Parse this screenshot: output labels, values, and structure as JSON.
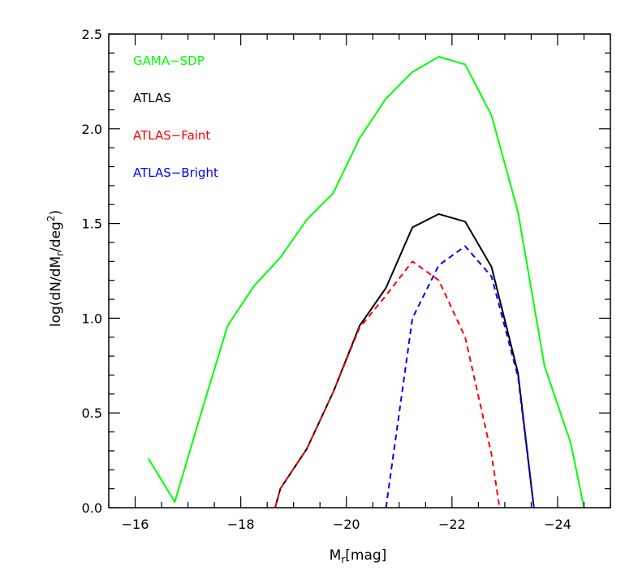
{
  "chart_data": {
    "type": "line",
    "title": "",
    "xlabel": {
      "main": "M",
      "sub": "r",
      "rest": "[mag]"
    },
    "ylabel": {
      "a": "log(dN/dM",
      "sub": "r",
      "b": "/deg",
      "sup": "2",
      "c": ")"
    },
    "xlim": [
      -15.5,
      -25
    ],
    "ylim": [
      0,
      2.5
    ],
    "xticks": [
      -16,
      -18,
      -20,
      -22,
      -24
    ],
    "xtick_labels": [
      "−16",
      "−18",
      "−20",
      "−22",
      "−24"
    ],
    "yticks": [
      0.0,
      0.5,
      1.0,
      1.5,
      2.0,
      2.5
    ],
    "ytick_labels": [
      "0.0",
      "0.5",
      "1.0",
      "1.5",
      "2.0",
      "2.5"
    ],
    "grid": false,
    "legend_placement": "top-left",
    "series": [
      {
        "name": "GAMA−SDP",
        "color": "#00ff00",
        "dash": "solid",
        "x": [
          -16.25,
          -16.75,
          -17.25,
          -17.75,
          -18.25,
          -18.75,
          -19.25,
          -19.75,
          -20.25,
          -20.75,
          -21.25,
          -21.75,
          -22.25,
          -22.75,
          -23.25,
          -23.75,
          -24.25,
          -24.5
        ],
        "y": [
          0.26,
          0.03,
          0.5,
          0.96,
          1.17,
          1.32,
          1.52,
          1.66,
          1.95,
          2.16,
          2.3,
          2.38,
          2.34,
          2.07,
          1.56,
          0.75,
          0.34,
          0.0
        ]
      },
      {
        "name": "ATLAS",
        "color": "#000000",
        "dash": "solid",
        "x": [
          -18.65,
          -18.75,
          -19.25,
          -19.75,
          -20.25,
          -20.75,
          -21.25,
          -21.75,
          -22.25,
          -22.75,
          -23.25,
          -23.55
        ],
        "y": [
          0.0,
          0.1,
          0.31,
          0.61,
          0.96,
          1.16,
          1.48,
          1.55,
          1.51,
          1.27,
          0.71,
          0.0
        ]
      },
      {
        "name": "ATLAS−Faint",
        "color": "#ff0000",
        "dash": "dashed",
        "x": [
          -18.65,
          -18.75,
          -19.25,
          -19.75,
          -20.25,
          -20.75,
          -21.25,
          -21.75,
          -22.25,
          -22.75,
          -22.9
        ],
        "y": [
          0.0,
          0.1,
          0.31,
          0.61,
          0.95,
          1.12,
          1.3,
          1.2,
          0.9,
          0.28,
          0.0
        ]
      },
      {
        "name": "ATLAS−Bright",
        "color": "#0000ff",
        "dash": "dashed",
        "x": [
          -20.75,
          -21.25,
          -21.75,
          -22.25,
          -22.75,
          -23.25,
          -23.55
        ],
        "y": [
          0.0,
          1.0,
          1.28,
          1.38,
          1.22,
          0.69,
          0.0
        ]
      }
    ]
  }
}
